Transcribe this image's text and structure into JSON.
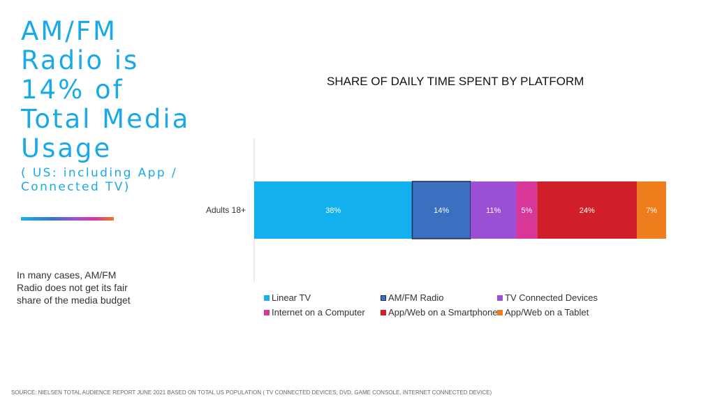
{
  "headline": {
    "lines": [
      "AM/FM",
      "Radio is",
      "14% of",
      "Total Media",
      "Usage"
    ],
    "sub_lines": [
      "( US: including App /",
      "Connected TV)"
    ]
  },
  "side_note": {
    "lines": [
      "In many cases, AM/FM",
      "Radio does not get its fair",
      "share of the media budget"
    ]
  },
  "source": "SOURCE: NIELSEN TOTAL AUDIENCE REPORT JUNE 2021 BASED ON TOTAL US POPULATION ( TV CONNECTED DEVICES; DVD, GAME CONSOLE, INTERNET CONNECTED DEVICE)",
  "chart_data": {
    "type": "bar",
    "orientation": "horizontal",
    "stacked": true,
    "title": "SHARE OF DAILY TIME SPENT BY PLATFORM",
    "categories": [
      "Adults 18+"
    ],
    "xlim": [
      0,
      99
    ],
    "grid": false,
    "legend_position": "bottom",
    "series": [
      {
        "name": "Linear TV",
        "values": [
          38
        ],
        "label": "38%",
        "color": "#12b0ef"
      },
      {
        "name": "AM/FM Radio",
        "values": [
          14
        ],
        "label": "14%",
        "color": "#3b6fbf",
        "outline": "#1b2a4a"
      },
      {
        "name": "TV Connected Devices",
        "values": [
          11
        ],
        "label": "11%",
        "color": "#9b4fd4"
      },
      {
        "name": "Internet on a Computer",
        "values": [
          5
        ],
        "label": "5%",
        "color": "#d9369a"
      },
      {
        "name": "App/Web on a Smartphone",
        "values": [
          24
        ],
        "label": "24%",
        "color": "#d01f2a"
      },
      {
        "name": "App/Web on a Tablet",
        "values": [
          7
        ],
        "label": "7%",
        "color": "#ef7d1c"
      }
    ]
  }
}
